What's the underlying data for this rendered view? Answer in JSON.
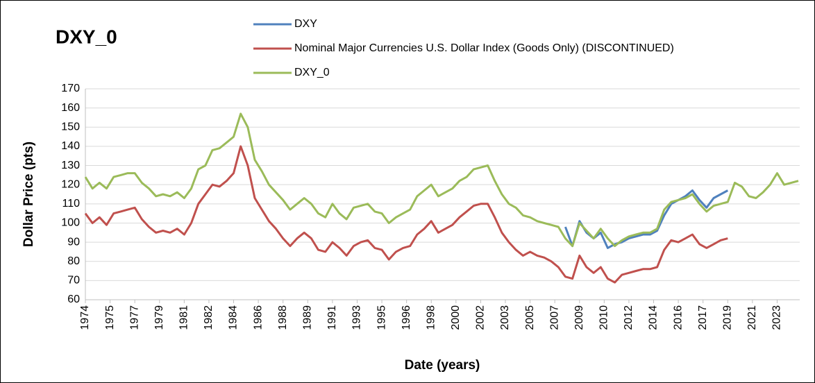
{
  "chart_data": {
    "type": "line",
    "title": "DXY_0",
    "x_label": "Date (years)",
    "y_label": "Dollar Price (pts)",
    "xlim": [
      1974,
      2024.6
    ],
    "ylim": [
      60,
      170
    ],
    "yticks": [
      60,
      70,
      80,
      90,
      100,
      110,
      120,
      130,
      140,
      150,
      160,
      170
    ],
    "xticks": [
      {
        "value": 1974,
        "label": "1974"
      },
      {
        "value": 1975.75,
        "label": "1975"
      },
      {
        "value": 1977.5,
        "label": "1977"
      },
      {
        "value": 1979.25,
        "label": "1979"
      },
      {
        "value": 1981,
        "label": "1981"
      },
      {
        "value": 1982.75,
        "label": "1982"
      },
      {
        "value": 1984.5,
        "label": "1984"
      },
      {
        "value": 1986.25,
        "label": "1986"
      },
      {
        "value": 1988,
        "label": "1988"
      },
      {
        "value": 1989.75,
        "label": "1989"
      },
      {
        "value": 1991.5,
        "label": "1991"
      },
      {
        "value": 1993.25,
        "label": "1993"
      },
      {
        "value": 1995,
        "label": "1995"
      },
      {
        "value": 1996.75,
        "label": "1996"
      },
      {
        "value": 1998.5,
        "label": "1998"
      },
      {
        "value": 2000.25,
        "label": "2000"
      },
      {
        "value": 2002,
        "label": "2002"
      },
      {
        "value": 2003.75,
        "label": "2003"
      },
      {
        "value": 2005.5,
        "label": "2005"
      },
      {
        "value": 2007.25,
        "label": "2007"
      },
      {
        "value": 2009,
        "label": "2009"
      },
      {
        "value": 2010.75,
        "label": "2010"
      },
      {
        "value": 2012.5,
        "label": "2012"
      },
      {
        "value": 2014.25,
        "label": "2014"
      },
      {
        "value": 2016,
        "label": "2016"
      },
      {
        "value": 2017.75,
        "label": "2017"
      },
      {
        "value": 2019.5,
        "label": "2019"
      },
      {
        "value": 2021.25,
        "label": "2021"
      },
      {
        "value": 2023,
        "label": "2023"
      }
    ],
    "grid": true,
    "legend": "top",
    "x": [
      1974,
      1974.5,
      1975,
      1975.5,
      1976,
      1976.5,
      1977,
      1977.5,
      1978,
      1978.5,
      1979,
      1979.5,
      1980,
      1980.5,
      1981,
      1981.5,
      1982,
      1982.5,
      1983,
      1983.5,
      1984,
      1984.5,
      1985,
      1985.5,
      1986,
      1986.5,
      1987,
      1987.5,
      1988,
      1988.5,
      1989,
      1989.5,
      1990,
      1990.5,
      1991,
      1991.5,
      1992,
      1992.5,
      1993,
      1993.5,
      1994,
      1994.5,
      1995,
      1995.5,
      1996,
      1996.5,
      1997,
      1997.5,
      1998,
      1998.5,
      1999,
      1999.5,
      2000,
      2000.5,
      2001,
      2001.5,
      2002,
      2002.5,
      2003,
      2003.5,
      2004,
      2004.5,
      2005,
      2005.5,
      2006,
      2006.5,
      2007,
      2007.5,
      2008,
      2008.5,
      2009,
      2009.5,
      2010,
      2010.5,
      2011,
      2011.5,
      2012,
      2012.5,
      2013,
      2013.5,
      2014,
      2014.5,
      2015,
      2015.5,
      2016,
      2016.5,
      2017,
      2017.5,
      2018,
      2018.5,
      2019,
      2019.5,
      2020,
      2020.5,
      2021,
      2021.5,
      2022,
      2022.5,
      2023,
      2023.5,
      2024,
      2024.5
    ],
    "series": [
      {
        "name": "DXY",
        "color": "#4f81bd",
        "values": [
          null,
          null,
          null,
          null,
          null,
          null,
          null,
          null,
          null,
          null,
          null,
          null,
          null,
          null,
          null,
          null,
          null,
          null,
          null,
          null,
          null,
          null,
          null,
          null,
          null,
          null,
          null,
          null,
          null,
          null,
          null,
          null,
          null,
          null,
          null,
          null,
          null,
          null,
          null,
          null,
          null,
          null,
          null,
          null,
          null,
          null,
          null,
          null,
          null,
          null,
          null,
          null,
          null,
          null,
          null,
          null,
          null,
          null,
          null,
          null,
          null,
          null,
          null,
          null,
          null,
          null,
          null,
          null,
          98,
          88,
          101,
          95,
          92,
          95,
          87,
          89,
          90,
          92,
          93,
          94,
          94,
          96,
          104,
          110,
          112,
          114,
          117,
          112,
          108,
          113,
          115,
          117,
          null,
          null,
          null,
          null,
          null,
          null,
          null,
          null,
          null,
          null
        ]
      },
      {
        "name": "Nominal Major Currencies U.S. Dollar Index (Goods Only) (DISCONTINUED)",
        "color": "#c0504d",
        "values": [
          105,
          100,
          103,
          99,
          105,
          106,
          107,
          108,
          102,
          98,
          95,
          96,
          95,
          97,
          94,
          100,
          110,
          115,
          120,
          119,
          122,
          126,
          140,
          130,
          113,
          107,
          101,
          97,
          92,
          88,
          92,
          95,
          92,
          86,
          85,
          90,
          87,
          83,
          88,
          90,
          91,
          87,
          86,
          81,
          85,
          87,
          88,
          94,
          97,
          101,
          95,
          97,
          99,
          103,
          106,
          109,
          110,
          110,
          103,
          95,
          90,
          86,
          83,
          85,
          83,
          82,
          80,
          77,
          72,
          71,
          83,
          77,
          74,
          77,
          71,
          69,
          73,
          74,
          75,
          76,
          76,
          77,
          86,
          91,
          90,
          92,
          94,
          89,
          87,
          89,
          91,
          92,
          null,
          null,
          null,
          null,
          null,
          null,
          null,
          null,
          null,
          null
        ]
      },
      {
        "name": "DXY_0",
        "color": "#9bbb59",
        "values": [
          124,
          118,
          121,
          118,
          124,
          125,
          126,
          126,
          121,
          118,
          114,
          115,
          114,
          116,
          113,
          118,
          128,
          130,
          138,
          139,
          142,
          145,
          157,
          150,
          133,
          127,
          120,
          116,
          112,
          107,
          110,
          113,
          110,
          105,
          103,
          110,
          105,
          102,
          108,
          109,
          110,
          106,
          105,
          100,
          103,
          105,
          107,
          114,
          117,
          120,
          114,
          116,
          118,
          122,
          124,
          128,
          129,
          130,
          122,
          115,
          110,
          108,
          104,
          103,
          101,
          100,
          99,
          98,
          92,
          88,
          100,
          96,
          92,
          97,
          92,
          88,
          91,
          93,
          94,
          95,
          95,
          97,
          107,
          111,
          112,
          113,
          115,
          110,
          106,
          109,
          110,
          111,
          121,
          119,
          114,
          113,
          116,
          120,
          126,
          120,
          121,
          122
        ]
      }
    ]
  }
}
